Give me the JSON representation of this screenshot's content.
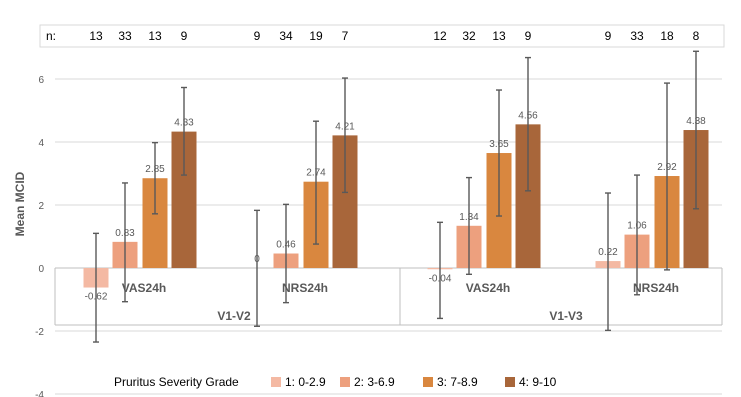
{
  "chart_data": {
    "type": "bar",
    "title": "",
    "ylabel": "Mean MCID",
    "xlabel": "",
    "ylim": [
      -4,
      7
    ],
    "y_ticks": [
      6,
      4,
      2,
      0,
      -2,
      -4
    ],
    "grid": "horizontal",
    "n_label": "n:",
    "legend": {
      "title": "Pruritus Severity Grade",
      "placement": "bottom"
    },
    "series": [
      {
        "name": "1: 0-2.9",
        "color": "#F4B9A3"
      },
      {
        "name": "2: 3-6.9",
        "color": "#EDA07E"
      },
      {
        "name": "3: 7-8.9",
        "color": "#D9873F"
      },
      {
        "name": "4:  9-10",
        "color": "#A8663A"
      }
    ],
    "groups": [
      {
        "label": "VAS24h",
        "visit": "V1-V2",
        "values": [
          -0.62,
          0.83,
          2.85,
          4.33
        ],
        "labels": [
          "-0.62",
          "0.83",
          "2.85",
          "4.33"
        ],
        "err_low": [
          -2.35,
          -1.07,
          1.72,
          2.95
        ],
        "err_high": [
          1.1,
          2.7,
          3.98,
          5.73
        ],
        "n": [
          "13",
          "33",
          "13",
          "9"
        ]
      },
      {
        "label": "NRS24h",
        "visit": "V1-V2",
        "values": [
          0,
          0.46,
          2.74,
          4.21
        ],
        "labels": [
          "0",
          "0.46",
          "2.74",
          "4.21"
        ],
        "err_low": [
          -1.85,
          -1.1,
          0.76,
          2.4
        ],
        "err_high": [
          1.83,
          2.02,
          4.66,
          6.03
        ],
        "n": [
          "9",
          "34",
          "19",
          "7"
        ]
      },
      {
        "label": "VAS24h",
        "visit": "V1-V3",
        "values": [
          -0.04,
          1.34,
          3.65,
          4.56
        ],
        "labels": [
          "-0.04",
          "1.34",
          "3.65",
          "4.56"
        ],
        "err_low": [
          -1.6,
          -0.2,
          1.65,
          2.45
        ],
        "err_high": [
          1.45,
          2.87,
          5.65,
          6.68
        ],
        "n": [
          "12",
          "32",
          "13",
          "9"
        ]
      },
      {
        "label": "NRS24h",
        "visit": "V1-V3",
        "values": [
          0.22,
          1.06,
          2.92,
          4.38
        ],
        "labels": [
          "0.22",
          "1.06",
          "2.92",
          "4.38"
        ],
        "err_low": [
          -1.98,
          -0.85,
          -0.06,
          1.88
        ],
        "err_high": [
          2.38,
          2.95,
          5.87,
          6.88
        ],
        "n": [
          "9",
          "33",
          "18",
          "8"
        ]
      }
    ],
    "visits": [
      "V1-V2",
      "V1-V3"
    ]
  }
}
